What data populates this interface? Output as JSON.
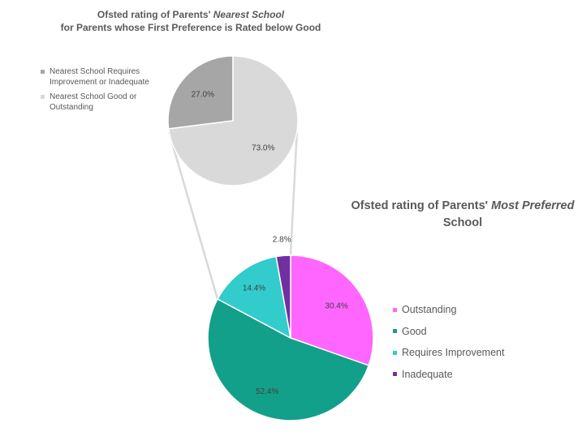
{
  "chart_data": [
    {
      "type": "pie",
      "title_line1_prefix": "Ofsted rating of Parents' ",
      "title_line1_emph": "Nearest School",
      "title_line2": "for Parents whose First Preference is Rated below Good",
      "categories": [
        "Nearest School Requires Improvement or Inadequate",
        "Nearest School Good or Outstanding"
      ],
      "legend_lines": [
        [
          "Nearest School Requires",
          "Improvement or Inadequate"
        ],
        [
          "Nearest School Good or",
          "Outstanding"
        ]
      ],
      "values": [
        27.0,
        73.0
      ],
      "labels": [
        "27.0%",
        "73.0%"
      ],
      "colors": [
        "#a6a6a6",
        "#d9d9d9"
      ],
      "legend_placement": "left"
    },
    {
      "type": "pie",
      "title_line1_prefix": "Ofsted rating of Parents' ",
      "title_line1_emph": "Most Preferred",
      "title_line2": "School",
      "categories": [
        "Outstanding",
        "Good",
        "Requires Improvement",
        "Inadequate"
      ],
      "values": [
        30.4,
        52.4,
        14.4,
        2.8
      ],
      "labels": [
        "30.4%",
        "52.4%",
        "14.4%",
        "2.8%"
      ],
      "colors": [
        "#ff66ff",
        "#13a08a",
        "#33cccc",
        "#7030a0"
      ],
      "legend_placement": "right"
    }
  ]
}
